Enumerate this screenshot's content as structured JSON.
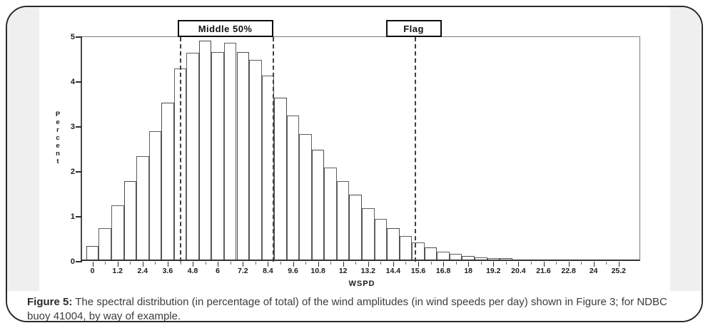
{
  "figure": {
    "caption_label": "Figure 5:",
    "caption_text": " The spectral distribution (in percentage of total) of the wind amplitudes (in wind speeds per day) shown in Figure 3; for NDBC buoy 41004, by way of example."
  },
  "annotations": {
    "middle50_label": "Middle 50%",
    "flag_label": "Flag"
  },
  "chart_data": {
    "type": "bar",
    "title": "",
    "xlabel": "WSPD",
    "ylabel": "Percent",
    "xlim": [
      -0.5,
      26.3
    ],
    "ylim": [
      0,
      5
    ],
    "grid": false,
    "legend": "none",
    "bin_width": 0.6,
    "x_tick_values": [
      0,
      1.2,
      2.4,
      3.6,
      4.8,
      6,
      7.2,
      8.4,
      9.6,
      10.8,
      12,
      13.2,
      14.4,
      15.6,
      16.8,
      18,
      19.2,
      20.4,
      21.6,
      22.8,
      24,
      25.2
    ],
    "x_tick_labels": [
      "0",
      "1.2",
      "2.4",
      "3.6",
      "4.8",
      "6",
      "7.2",
      "8.4",
      "9.6",
      "10.8",
      "12",
      "13.2",
      "14.4",
      "15.6",
      "16.8",
      "18",
      "19.2",
      "20.4",
      "21.6",
      "22.8",
      "24",
      "25.2"
    ],
    "y_tick_values": [
      0,
      1,
      2,
      3,
      4,
      5
    ],
    "y_tick_labels": [
      "0",
      "1",
      "2",
      "3",
      "4",
      "5"
    ],
    "midpoints": [
      0,
      0.6,
      1.2,
      1.8,
      2.4,
      3.0,
      3.6,
      4.2,
      4.8,
      5.4,
      6.0,
      6.6,
      7.2,
      7.8,
      8.4,
      9.0,
      9.6,
      10.2,
      10.8,
      11.4,
      12.0,
      12.6,
      13.2,
      13.8,
      14.4,
      15.0,
      15.6,
      16.2,
      16.8,
      17.4,
      18.0,
      18.6,
      19.2,
      19.8
    ],
    "values": [
      0.3,
      0.7,
      1.2,
      1.75,
      2.3,
      2.85,
      3.5,
      4.25,
      4.6,
      4.87,
      4.62,
      4.82,
      4.62,
      4.45,
      4.1,
      3.6,
      3.2,
      2.8,
      2.45,
      2.05,
      1.75,
      1.45,
      1.15,
      0.9,
      0.7,
      0.52,
      0.38,
      0.27,
      0.18,
      0.12,
      0.08,
      0.05,
      0.04,
      0.03
    ],
    "middle50_range": [
      4.2,
      8.65
    ],
    "flag_value": 15.45,
    "colors": {
      "bar_fill": "#ffffff",
      "bar_edge": "#5f5f5f",
      "dashed_line": "#3f3f3f",
      "panel_border": "#2a2a2a",
      "chart_margin_bg": "#efefef",
      "annotation_border": "#0d0d0d",
      "axis_text": "#1c1c1c"
    }
  }
}
